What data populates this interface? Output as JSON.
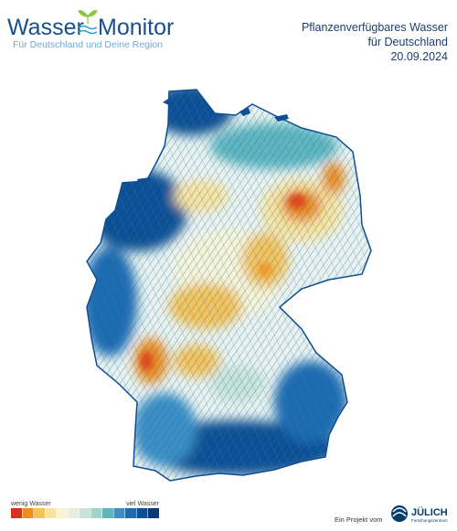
{
  "header": {
    "logo_word_1": "Wasser",
    "logo_word_2": "Monitor",
    "subtitle": "Für Deutschland und Deine Region"
  },
  "title": {
    "line1": "Pflanzenverfügbares Wasser",
    "line2": "für Deutschland",
    "date": "20.09.2024"
  },
  "legend": {
    "low_label": "wenig Wasser",
    "high_label": "viel Wasser",
    "colors": [
      "#d7301f",
      "#f08c1a",
      "#f6c35a",
      "#f9e39e",
      "#f8f4d6",
      "#e4efdc",
      "#c9e4d6",
      "#a2d3cb",
      "#5fb6bd",
      "#3a8fc4",
      "#1f6bb0",
      "#0d4f92",
      "#083a78"
    ]
  },
  "footer": {
    "text": "Ein Projekt vom",
    "org": "JÜLICH",
    "org_sub": "Forschungszentrum"
  }
}
